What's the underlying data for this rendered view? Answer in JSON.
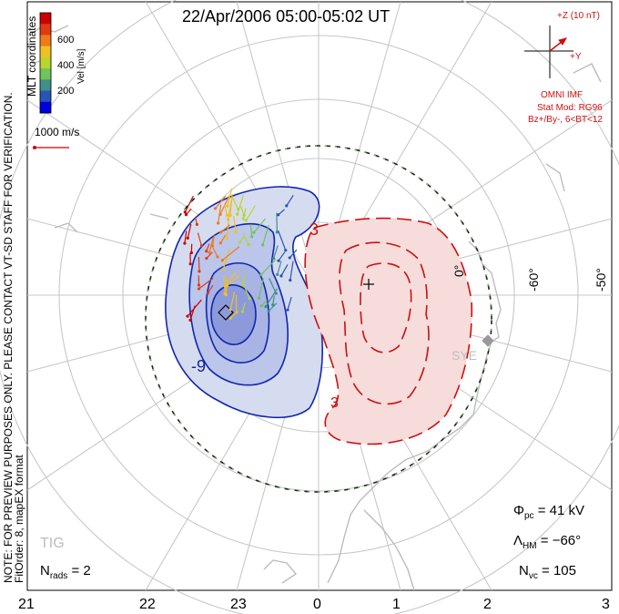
{
  "title": "22/Apr/2006 05:00-05:02 UT",
  "coordinate_label": "MLT coordinates",
  "note": "NOTE: FOR PREVIEW PURPOSES ONLY. PLEASE CONTACT VT-SD STAFF FOR VERIFICATION.",
  "fit_info": "FitOrder: 8, mapEX format",
  "colorbar": {
    "unit_label": "Vel [m/s]",
    "ticks": [
      "600",
      "400",
      "200"
    ],
    "colors": [
      "#0000dd",
      "#2a52b8",
      "#3f8f8a",
      "#6fc45a",
      "#b8d52c",
      "#f0c020",
      "#f07a1a",
      "#e03a12",
      "#cc0000"
    ]
  },
  "reference_vector": {
    "label": "1000 m/s",
    "color": "#cc0000"
  },
  "imf": {
    "bz_label": "+Z (10 nT)",
    "by_label": "+Y",
    "source": "OMNI IMF",
    "stat_mod": "Stat Mod: RG96",
    "condition": "Bz+/By-, 6<BT<12",
    "color": "#d01010"
  },
  "potential_labels": {
    "negative": "-9",
    "positive": "3",
    "positive2": "3"
  },
  "lat_labels": [
    "0°",
    "-60°",
    "-50°"
  ],
  "station_labels": {
    "sye": "SYE",
    "tig": "TIG"
  },
  "params": {
    "phi_pc_symbol": "Φ",
    "phi_pc_sub": "pc",
    "phi_pc_value": "= 41 kV",
    "lambda_hm_symbol": "Λ",
    "lambda_hm_sub": "HM",
    "lambda_hm_value": "= −66°",
    "n_rads_symbol": "N",
    "n_rads_sub": "rads",
    "n_rads_value": "= 2",
    "n_vc_symbol": "N",
    "n_vc_sub": "vc",
    "n_vc_value": "= 105"
  },
  "mlt_ticks": [
    "21",
    "22",
    "23",
    "0",
    "1",
    "2",
    "3"
  ],
  "colors": {
    "negative_cell_fill": "#d6dcf0",
    "negative_contour": "#1026b0",
    "positive_cell_fill": "#f7dcdc",
    "positive_contour": "#cc1010",
    "grid": "#c8c8c8",
    "coastline": "#bcbcbc",
    "hm_boundary": "#222222"
  }
}
